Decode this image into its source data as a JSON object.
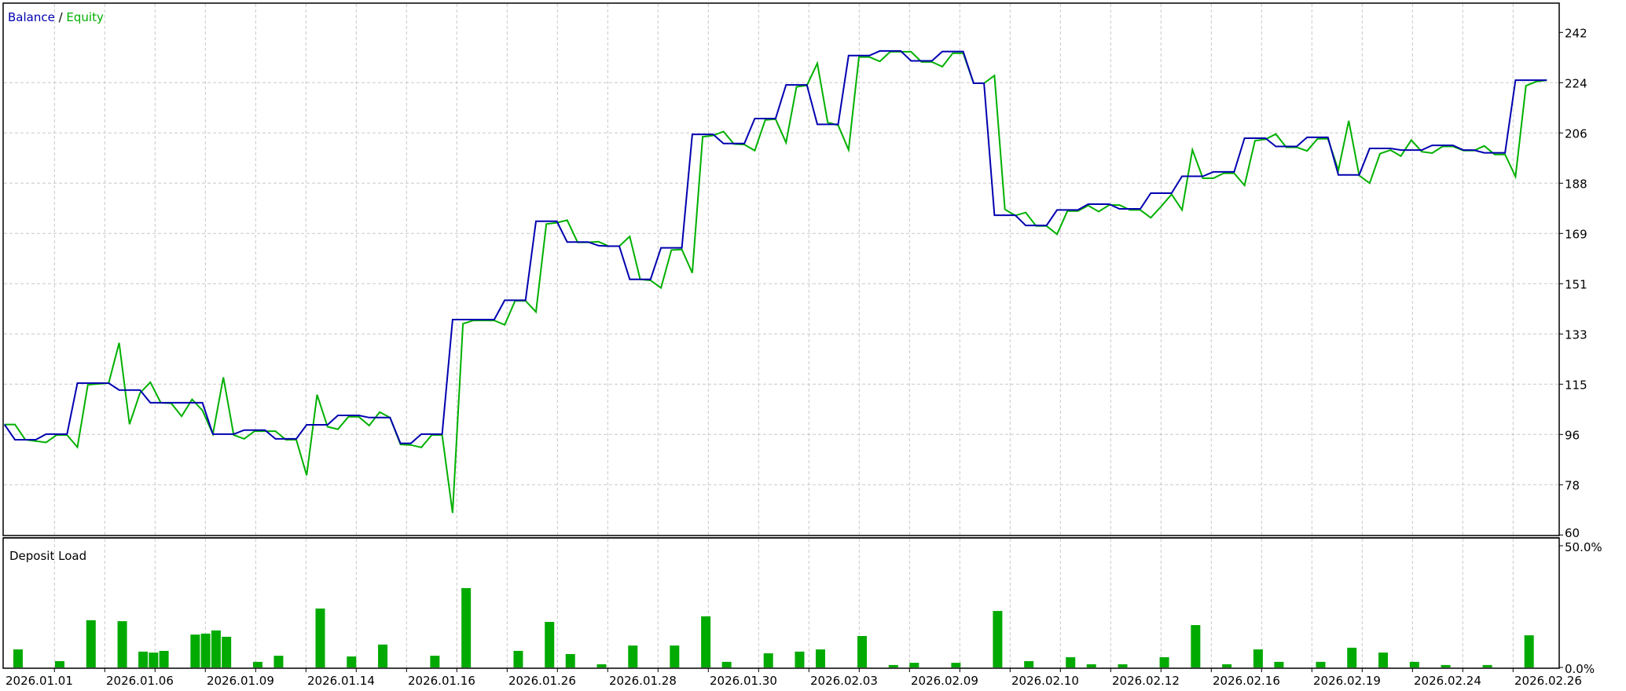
{
  "chart_data": [
    {
      "type": "line",
      "legend": {
        "balance_label": "Balance",
        "separator": " / ",
        "equity_label": "Equity",
        "placement": "top-left"
      },
      "ylim": [
        60,
        242
      ],
      "y_ticks": [
        "242",
        "224",
        "206",
        "188",
        "169",
        "151",
        "133",
        "115",
        "96",
        "78",
        "60"
      ],
      "grid": true,
      "colors": {
        "balance": "#0000b0",
        "equity": "#00b000"
      },
      "x_tick_labels": [
        "2026.01.01",
        "2026.01.06",
        "2026.01.09",
        "2026.01.14",
        "2026.01.16",
        "2026.01.26",
        "2026.01.28",
        "2026.01.30",
        "2026.02.03",
        "2026.02.09",
        "2026.02.10",
        "2026.02.12",
        "2026.02.16",
        "2026.02.19",
        "2026.02.24",
        "2026.02.26"
      ],
      "series": [
        {
          "name": "Balance",
          "values": [
            100,
            94.5,
            94.5,
            94.5,
            96.5,
            96.5,
            96.5,
            115,
            115,
            115,
            115,
            112.5,
            112.5,
            112.5,
            107.9,
            107.9,
            107.9,
            107.9,
            107.9,
            107.9,
            96.5,
            96.5,
            96.5,
            98,
            98,
            98,
            94.8,
            94.8,
            94.8,
            99.9,
            99.9,
            99.9,
            103.3,
            103.3,
            103.3,
            102.5,
            102.5,
            102.5,
            93.2,
            93.2,
            96.5,
            96.5,
            96.5,
            138,
            138,
            138,
            138,
            138,
            145,
            145,
            145,
            173.6,
            173.6,
            173.6,
            166.1,
            166.1,
            166.1,
            164.8,
            164.6,
            164.6,
            152.6,
            152.6,
            152.6,
            164,
            164,
            164,
            205.1,
            205.1,
            205.1,
            201.8,
            201.8,
            201.8,
            210.8,
            210.8,
            210.8,
            223,
            223,
            223,
            208.7,
            208.7,
            208.7,
            233.6,
            233.6,
            233.6,
            235.3,
            235.3,
            235.3,
            231.7,
            231.7,
            231.7,
            235.1,
            235.1,
            235.1,
            223.6,
            223.6,
            175.8,
            175.8,
            175.8,
            172.1,
            172.1,
            172.1,
            177.7,
            177.7,
            177.7,
            179.8,
            179.8,
            179.8,
            178.1,
            178.1,
            178.1,
            183.8,
            183.8,
            183.8,
            189.9,
            189.9,
            189.9,
            191.5,
            191.5,
            191.5,
            203.7,
            203.7,
            203.7,
            200.7,
            200.7,
            200.7,
            204,
            204,
            204,
            190.4,
            190.4,
            190.4,
            200,
            200,
            200,
            199.4,
            199.4,
            199.4,
            201.1,
            201.1,
            201.1,
            199.4,
            199.4,
            198.4,
            198.4,
            198.4,
            224.7,
            224.7,
            224.7,
            224.7
          ]
        },
        {
          "name": "Equity",
          "values": [
            100,
            100,
            94.5,
            94,
            93.5,
            96.2,
            96.2,
            91.8,
            114.4,
            114.7,
            115,
            129.6,
            100.1,
            111.4,
            115.3,
            107.9,
            107.7,
            103,
            109.1,
            105.1,
            96.5,
            117.1,
            96.2,
            94.8,
            97.6,
            97.6,
            97.6,
            94.5,
            94.5,
            81.6,
            110.8,
            99.2,
            98.3,
            102.8,
            102.8,
            99.6,
            104.5,
            102.5,
            92.8,
            92.6,
            91.7,
            96.2,
            96.2,
            68,
            136.5,
            137.7,
            137.7,
            137.7,
            136.1,
            144.8,
            144.8,
            140.8,
            172.6,
            173.1,
            174,
            166,
            166,
            166.2,
            164.6,
            164.6,
            168.1,
            152.6,
            152.2,
            149.5,
            163.2,
            163.4,
            154.9,
            204.2,
            204.7,
            206.1,
            201.6,
            201.4,
            199.2,
            210.3,
            210.6,
            202.1,
            222.3,
            222.8,
            230.8,
            209.4,
            208.4,
            199.5,
            233.1,
            233.1,
            231.5,
            235,
            235,
            235,
            231.3,
            231.3,
            229.6,
            234.5,
            234.5,
            223.6,
            223.6,
            226.4,
            177.9,
            175.7,
            176.8,
            171.9,
            171.9,
            168.9,
            177.3,
            177.3,
            179.3,
            177.1,
            179.5,
            179.5,
            177.7,
            177.7,
            174.9,
            179,
            183.4,
            177.7,
            199.5,
            189.2,
            189.2,
            191,
            191,
            186.6,
            202.8,
            203.3,
            205.2,
            200.4,
            200.4,
            199.1,
            203.5,
            203.5,
            192.1,
            210,
            190.2,
            187.4,
            198.1,
            199.4,
            197.2,
            203,
            198.8,
            198.3,
            200.7,
            200.7,
            199.2,
            199.2,
            200.9,
            197.8,
            197.8,
            189.8,
            222.7,
            224.2,
            224.7
          ]
        }
      ]
    },
    {
      "type": "bar",
      "title": "Deposit Load",
      "ylim": [
        0,
        50
      ],
      "y_ticks": [
        "50.0%",
        "0.0%"
      ],
      "color": "#00aa00",
      "bars": [
        [
          1,
          7.4
        ],
        [
          5,
          2.6
        ],
        [
          8,
          19.4
        ],
        [
          11,
          19
        ],
        [
          13,
          6.5
        ],
        [
          14,
          6.1
        ],
        [
          15,
          6.8
        ],
        [
          18,
          13.5
        ],
        [
          19,
          13.9
        ],
        [
          20,
          15.2
        ],
        [
          21,
          12.6
        ],
        [
          24,
          2.3
        ],
        [
          26,
          4.8
        ],
        [
          30,
          24.2
        ],
        [
          33,
          4.5
        ],
        [
          36,
          9.4
        ],
        [
          41,
          4.8
        ],
        [
          44,
          32.6
        ],
        [
          49,
          6.8
        ],
        [
          52,
          18.7
        ],
        [
          54,
          5.5
        ],
        [
          57,
          1.3
        ],
        [
          60,
          9
        ],
        [
          64,
          9
        ],
        [
          67,
          21
        ],
        [
          69,
          2.3
        ],
        [
          73,
          5.8
        ],
        [
          76,
          6.5
        ],
        [
          78,
          7.4
        ],
        [
          82,
          12.9
        ],
        [
          85,
          1
        ],
        [
          87,
          1.9
        ],
        [
          91,
          1.9
        ],
        [
          95,
          23.2
        ],
        [
          98,
          2.6
        ],
        [
          102,
          4.2
        ],
        [
          104,
          1.3
        ],
        [
          107,
          1.3
        ],
        [
          111,
          4.2
        ],
        [
          114,
          17.4
        ],
        [
          117,
          1.3
        ],
        [
          120,
          7.4
        ],
        [
          122,
          2.3
        ],
        [
          126,
          2.3
        ],
        [
          129,
          8.1
        ],
        [
          132,
          6.1
        ],
        [
          135,
          2.3
        ],
        [
          138,
          1
        ],
        [
          142,
          1
        ],
        [
          146,
          13.2
        ]
      ]
    }
  ]
}
